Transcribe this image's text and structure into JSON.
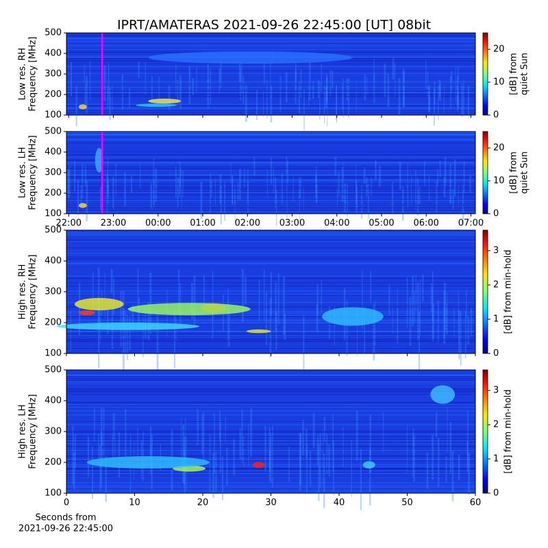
{
  "title": "IPRT/AMATERAS 2021-09-26 22:45:00 [UT]   08bit",
  "chart_data": [
    {
      "type": "heatmap",
      "ylabel": [
        "Low res. RH",
        "Frequency [MHz]"
      ],
      "ylim": [
        100,
        500
      ],
      "yticks": [
        100,
        200,
        300,
        400,
        500
      ],
      "xlim": [
        21.95,
        31.1
      ],
      "xticks": [
        22,
        23,
        24,
        25,
        26,
        27,
        28,
        29,
        30,
        31
      ],
      "show_xtick_labels": false,
      "marker": {
        "x": 22.75,
        "color": "#ff00ff"
      },
      "colormap": "jet",
      "colorbar": {
        "label": [
          "[dB] from",
          "quiet Sun"
        ],
        "lim": [
          0,
          25
        ],
        "ticks": [
          0,
          10,
          20
        ]
      }
    },
    {
      "type": "heatmap",
      "ylabel": [
        "Low res. LH",
        "Frequency [MHz]"
      ],
      "ylim": [
        100,
        500
      ],
      "yticks": [
        100,
        200,
        300,
        400,
        500
      ],
      "xlim": [
        21.95,
        31.1
      ],
      "xticks": [
        {
          "value": 22,
          "label": "22:00"
        },
        {
          "value": 23,
          "label": "23:00"
        },
        {
          "value": 24,
          "label": "00:00"
        },
        {
          "value": 25,
          "label": "01:00"
        },
        {
          "value": 26,
          "label": "02:00"
        },
        {
          "value": 27,
          "label": "03:00"
        },
        {
          "value": 28,
          "label": "04:00"
        },
        {
          "value": 29,
          "label": "05:00"
        },
        {
          "value": 30,
          "label": "06:00"
        },
        {
          "value": 31,
          "label": "07:00"
        }
      ],
      "show_xtick_labels": true,
      "marker": {
        "x": 22.75,
        "color": "#ff00ff"
      },
      "colormap": "jet",
      "colorbar": {
        "label": [
          "[dB] from",
          "quiet Sun"
        ],
        "lim": [
          0,
          25
        ],
        "ticks": [
          0,
          10,
          20
        ]
      }
    },
    {
      "type": "heatmap",
      "ylabel": [
        "High res. RH",
        "Frequency [MHz]"
      ],
      "ylim": [
        100,
        500
      ],
      "yticks": [
        100,
        200,
        300,
        400,
        500
      ],
      "xlim": [
        0,
        60
      ],
      "xticks": [
        0,
        10,
        20,
        30,
        40,
        50,
        60
      ],
      "show_xtick_labels": false,
      "colormap": "jet",
      "colorbar": {
        "label": [
          "[dB] from min-hold"
        ],
        "lim": [
          0,
          3.6
        ],
        "ticks": [
          0,
          1,
          2,
          3
        ]
      }
    },
    {
      "type": "heatmap",
      "ylabel": [
        "High res. LH",
        "Frequency [MHz]"
      ],
      "ylim": [
        100,
        500
      ],
      "yticks": [
        100,
        200,
        300,
        400,
        500
      ],
      "xlim": [
        0,
        60
      ],
      "xticks": [
        0,
        10,
        20,
        30,
        40,
        50,
        60
      ],
      "show_xtick_labels": true,
      "xlabel": [
        "Seconds from",
        "2021-09-26 22:45:00"
      ],
      "colormap": "jet",
      "colorbar": {
        "label": [
          "[dB] from min-hold"
        ],
        "lim": [
          0,
          3.6
        ],
        "ticks": [
          0,
          1,
          2,
          3
        ]
      }
    }
  ]
}
